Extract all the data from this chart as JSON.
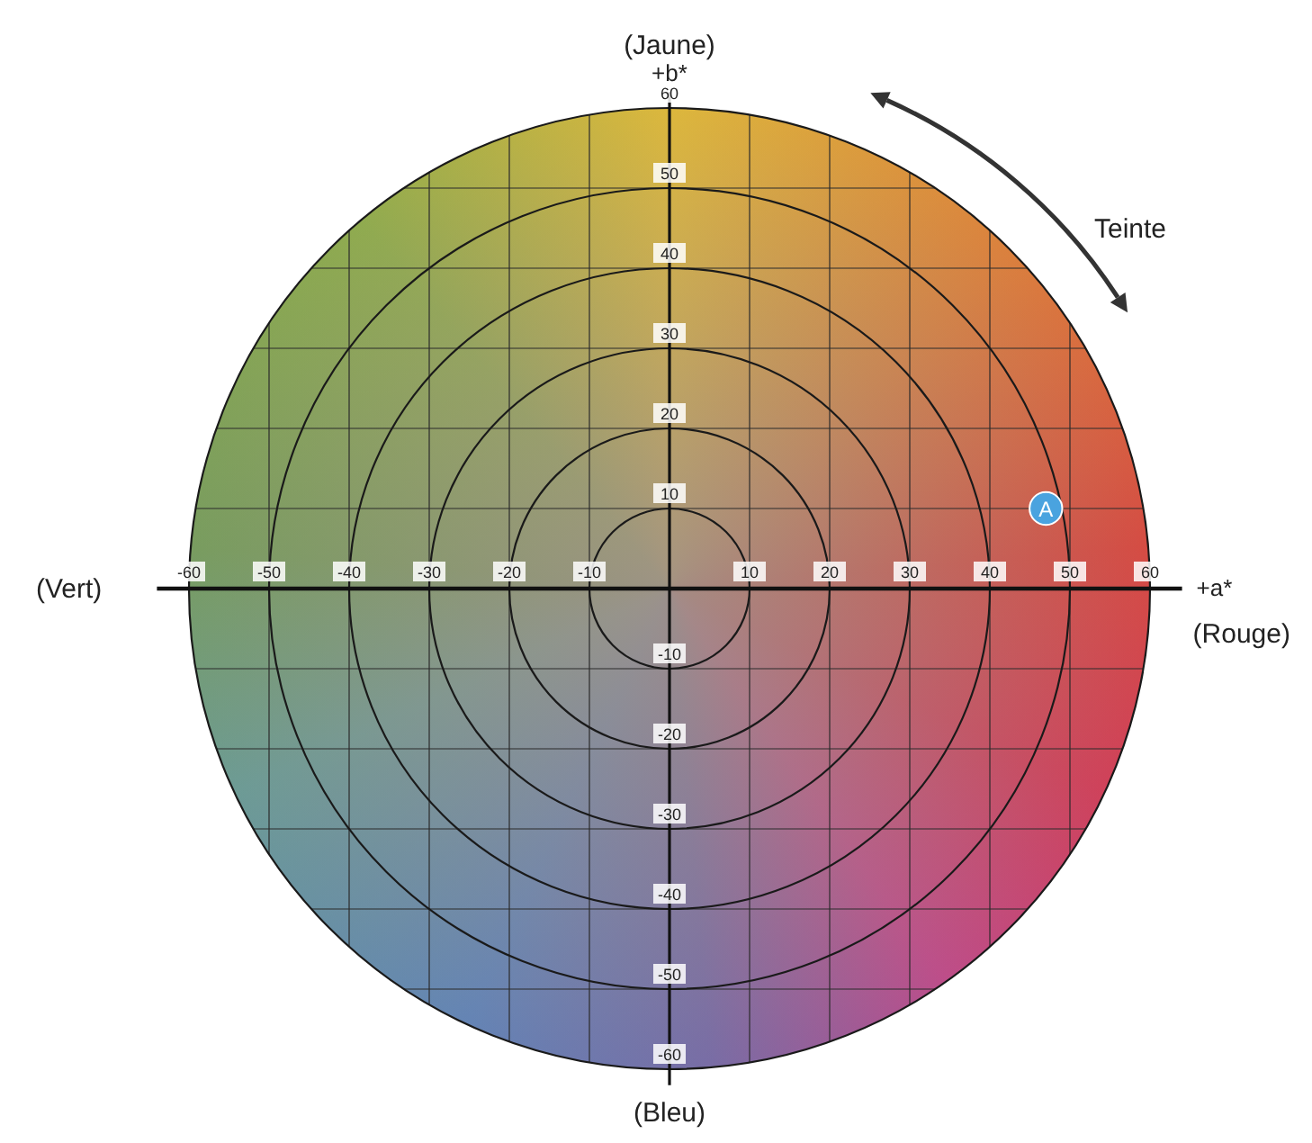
{
  "chart_data": {
    "type": "scatter",
    "xlabel": "+a*",
    "ylabel": "+b*",
    "x": [
      47
    ],
    "values": [
      10
    ],
    "value_labels": [
      "A"
    ],
    "color": "#4aa3df",
    "marker": "circle",
    "xlim": [
      -64,
      64
    ],
    "ylim": [
      -62,
      62
    ],
    "xticks": [
      -60,
      -50,
      -40,
      -30,
      -20,
      -10,
      {
        "value": 0,
        "label": null
      },
      10,
      20,
      30,
      40,
      50,
      60
    ],
    "yticks": [
      -60,
      -50,
      -40,
      -30,
      -20,
      -10,
      {
        "value": 0,
        "label": null
      },
      10,
      20,
      30,
      40,
      50,
      60
    ],
    "grid": true,
    "annotations": [
      "(Jaune)",
      "(Vert)",
      "(Rouge)",
      "(Bleu)",
      "Teinte"
    ]
  }
}
